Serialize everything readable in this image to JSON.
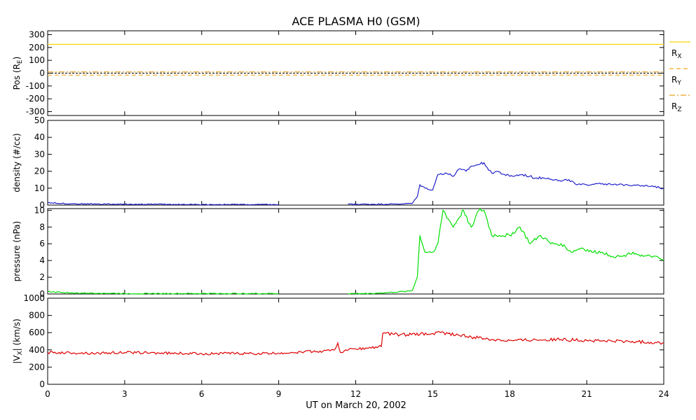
{
  "chart_data": {
    "type": "line",
    "title": "ACE PLASMA H0 (GSM)",
    "xlabel": "UT on March 20, 2002",
    "xlim": [
      0,
      24
    ],
    "xticks": [
      0,
      3,
      6,
      9,
      12,
      15,
      18,
      21,
      24
    ],
    "xtick_labels": [
      "0",
      "3",
      "6",
      "9",
      "12",
      "15",
      "18",
      "21",
      "24"
    ],
    "panels": [
      {
        "id": "pos",
        "ylabel": "Pos (R",
        "ylabel_sub": "E",
        "ylabel_end": ")",
        "ylim": [
          -330,
          330
        ],
        "yticks": [
          300,
          200,
          100,
          0,
          -100,
          -200,
          -300
        ],
        "ytick_labels": [
          "300",
          "200",
          "100",
          "0",
          "-100",
          "-200",
          "-300"
        ],
        "zero_line": true,
        "series": [
          {
            "name": "R",
            "sub": "X",
            "color": "#ffd700",
            "style": "solid",
            "x": [
              0,
              24
            ],
            "y": [
              224,
              224
            ]
          },
          {
            "name": "R",
            "sub": "Y",
            "color": "#f5a623",
            "style": "dashed",
            "x": [
              0,
              24
            ],
            "y": [
              -15,
              -15
            ]
          },
          {
            "name": "R",
            "sub": "Z",
            "color": "#e8a020",
            "style": "dashdot",
            "x": [
              0,
              24
            ],
            "y": [
              10,
              10
            ]
          }
        ]
      },
      {
        "id": "density",
        "ylabel": "density (#/cc)",
        "ylim": [
          0,
          50
        ],
        "yticks": [
          0,
          10,
          20,
          30,
          40,
          50
        ],
        "ytick_labels": [
          "0",
          "10",
          "20",
          "30",
          "40",
          "50"
        ],
        "series": [
          {
            "color": "#2222cc",
            "x": [
              0,
              0.5,
              1,
              2,
              3,
              4,
              5,
              6,
              7,
              8,
              9,
              null,
              11.7,
              12.5,
              13.5,
              14.2,
              14.4,
              14.5,
              14.7,
              15.0,
              15.2,
              15.5,
              15.8,
              16.0,
              16.3,
              16.5,
              16.8,
              17.0,
              17.3,
              17.5,
              17.8,
              18.0,
              18.5,
              19.0,
              19.5,
              20.0,
              20.3,
              20.6,
              21.0,
              21.5,
              22.0,
              22.5,
              23.0,
              23.5,
              24.0
            ],
            "y": [
              1.5,
              1,
              0.8,
              0.6,
              0.5,
              0.5,
              0.4,
              0.3,
              0.4,
              0.3,
              0.3,
              null,
              0.5,
              0.5,
              0.6,
              1,
              5,
              12,
              10,
              9,
              18,
              19,
              17,
              21,
              20,
              23,
              24,
              25,
              19,
              20,
              18,
              17,
              18,
              16,
              16,
              14,
              15,
              12,
              12,
              13,
              12,
              12,
              12,
              11,
              10
            ]
          }
        ]
      },
      {
        "id": "pressure",
        "ylabel": "pressure (nPa)",
        "ylim": [
          0,
          10.2
        ],
        "yticks": [
          0,
          2,
          4,
          6,
          8,
          10
        ],
        "ytick_labels": [
          "0",
          "2",
          "4",
          "6",
          "8",
          "10"
        ],
        "series": [
          {
            "color": "#00e000",
            "x": [
              0,
              0.5,
              1,
              2,
              3,
              4,
              5,
              6,
              7,
              8,
              9,
              null,
              11.7,
              12.5,
              13.5,
              14.2,
              14.4,
              14.5,
              14.7,
              15.0,
              15.2,
              15.4,
              15.6,
              15.8,
              16.0,
              16.2,
              16.5,
              16.8,
              17.0,
              17.3,
              17.6,
              18.0,
              18.4,
              18.8,
              19.2,
              19.6,
              20.0,
              20.4,
              20.8,
              21.2,
              21.6,
              22.0,
              22.4,
              22.8,
              23.2,
              23.6,
              24.0
            ],
            "y": [
              0.3,
              0.2,
              0.1,
              0.1,
              0.05,
              0.05,
              0.05,
              0.05,
              0.05,
              0.05,
              0.05,
              null,
              0.05,
              0.05,
              0.2,
              0.4,
              2,
              7,
              5,
              5,
              6,
              10,
              9,
              8,
              9,
              10,
              8,
              10,
              10,
              7,
              7,
              7,
              8,
              6,
              7,
              6,
              6,
              5,
              5.5,
              5,
              5,
              4.5,
              4.5,
              5,
              4.5,
              4.5,
              4
            ]
          }
        ]
      },
      {
        "id": "vx",
        "ylabel": "|V",
        "ylabel_sub": "X",
        "ylabel_end": "| (km/s)",
        "ylim": [
          0,
          1000
        ],
        "yticks": [
          0,
          200,
          400,
          600,
          800,
          1000
        ],
        "ytick_labels": [
          "0",
          "200",
          "400",
          "600",
          "800",
          "1000"
        ],
        "series": [
          {
            "color": "#dd0000",
            "x": [
              0,
              1,
              2,
              3,
              4,
              5,
              6,
              7,
              8,
              9,
              9.5,
              10,
              10.5,
              11,
              11.2,
              11.3,
              11.4,
              11.6,
              12,
              12.5,
              13,
              13.05,
              13.5,
              14,
              14.5,
              15,
              15.3,
              15.6,
              16,
              16.5,
              17,
              17.5,
              18,
              19,
              20,
              21,
              22,
              23,
              24
            ],
            "y": [
              370,
              365,
              360,
              370,
              365,
              360,
              355,
              360,
              355,
              360,
              370,
              380,
              380,
              390,
              410,
              480,
              370,
              400,
              410,
              420,
              440,
              590,
              580,
              575,
              580,
              590,
              600,
              590,
              570,
              550,
              530,
              520,
              510,
              520,
              520,
              510,
              500,
              495,
              480
            ]
          }
        ]
      }
    ]
  }
}
